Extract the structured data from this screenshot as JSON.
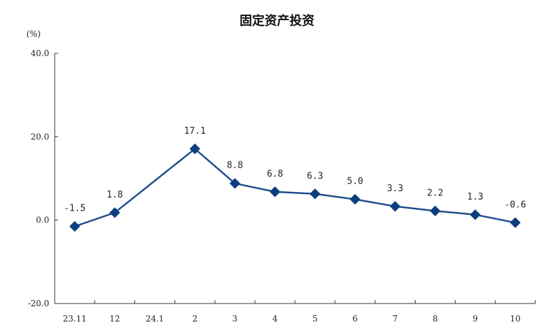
{
  "chart_data": {
    "type": "line",
    "title": "固定资产投资",
    "ylabel": "(%)",
    "xlabel": "",
    "categories": [
      "23.11",
      "12",
      "24.1",
      "2",
      "3",
      "4",
      "5",
      "6",
      "7",
      "8",
      "9",
      "10"
    ],
    "series": [
      {
        "values": [
          -1.5,
          1.8,
          null,
          17.1,
          8.8,
          6.8,
          6.3,
          5.0,
          3.3,
          2.2,
          1.3,
          -0.6
        ],
        "labels": [
          "-1.5",
          "1.8",
          "",
          "17.1",
          "8.8",
          "6.8",
          "6.3",
          "5.0",
          "3.3",
          "2.2",
          "1.3",
          "-0.6"
        ]
      }
    ],
    "ylim": [
      -20,
      40
    ],
    "yticks": [
      "40.0",
      "20.0",
      "0.0",
      "-20.0"
    ],
    "ytick_values": [
      40,
      20,
      0,
      -20
    ],
    "grid": false,
    "legend": "none",
    "colors": {
      "line": "#1f4e8c",
      "marker": "#0d3f7f",
      "axis": "#333333"
    }
  }
}
